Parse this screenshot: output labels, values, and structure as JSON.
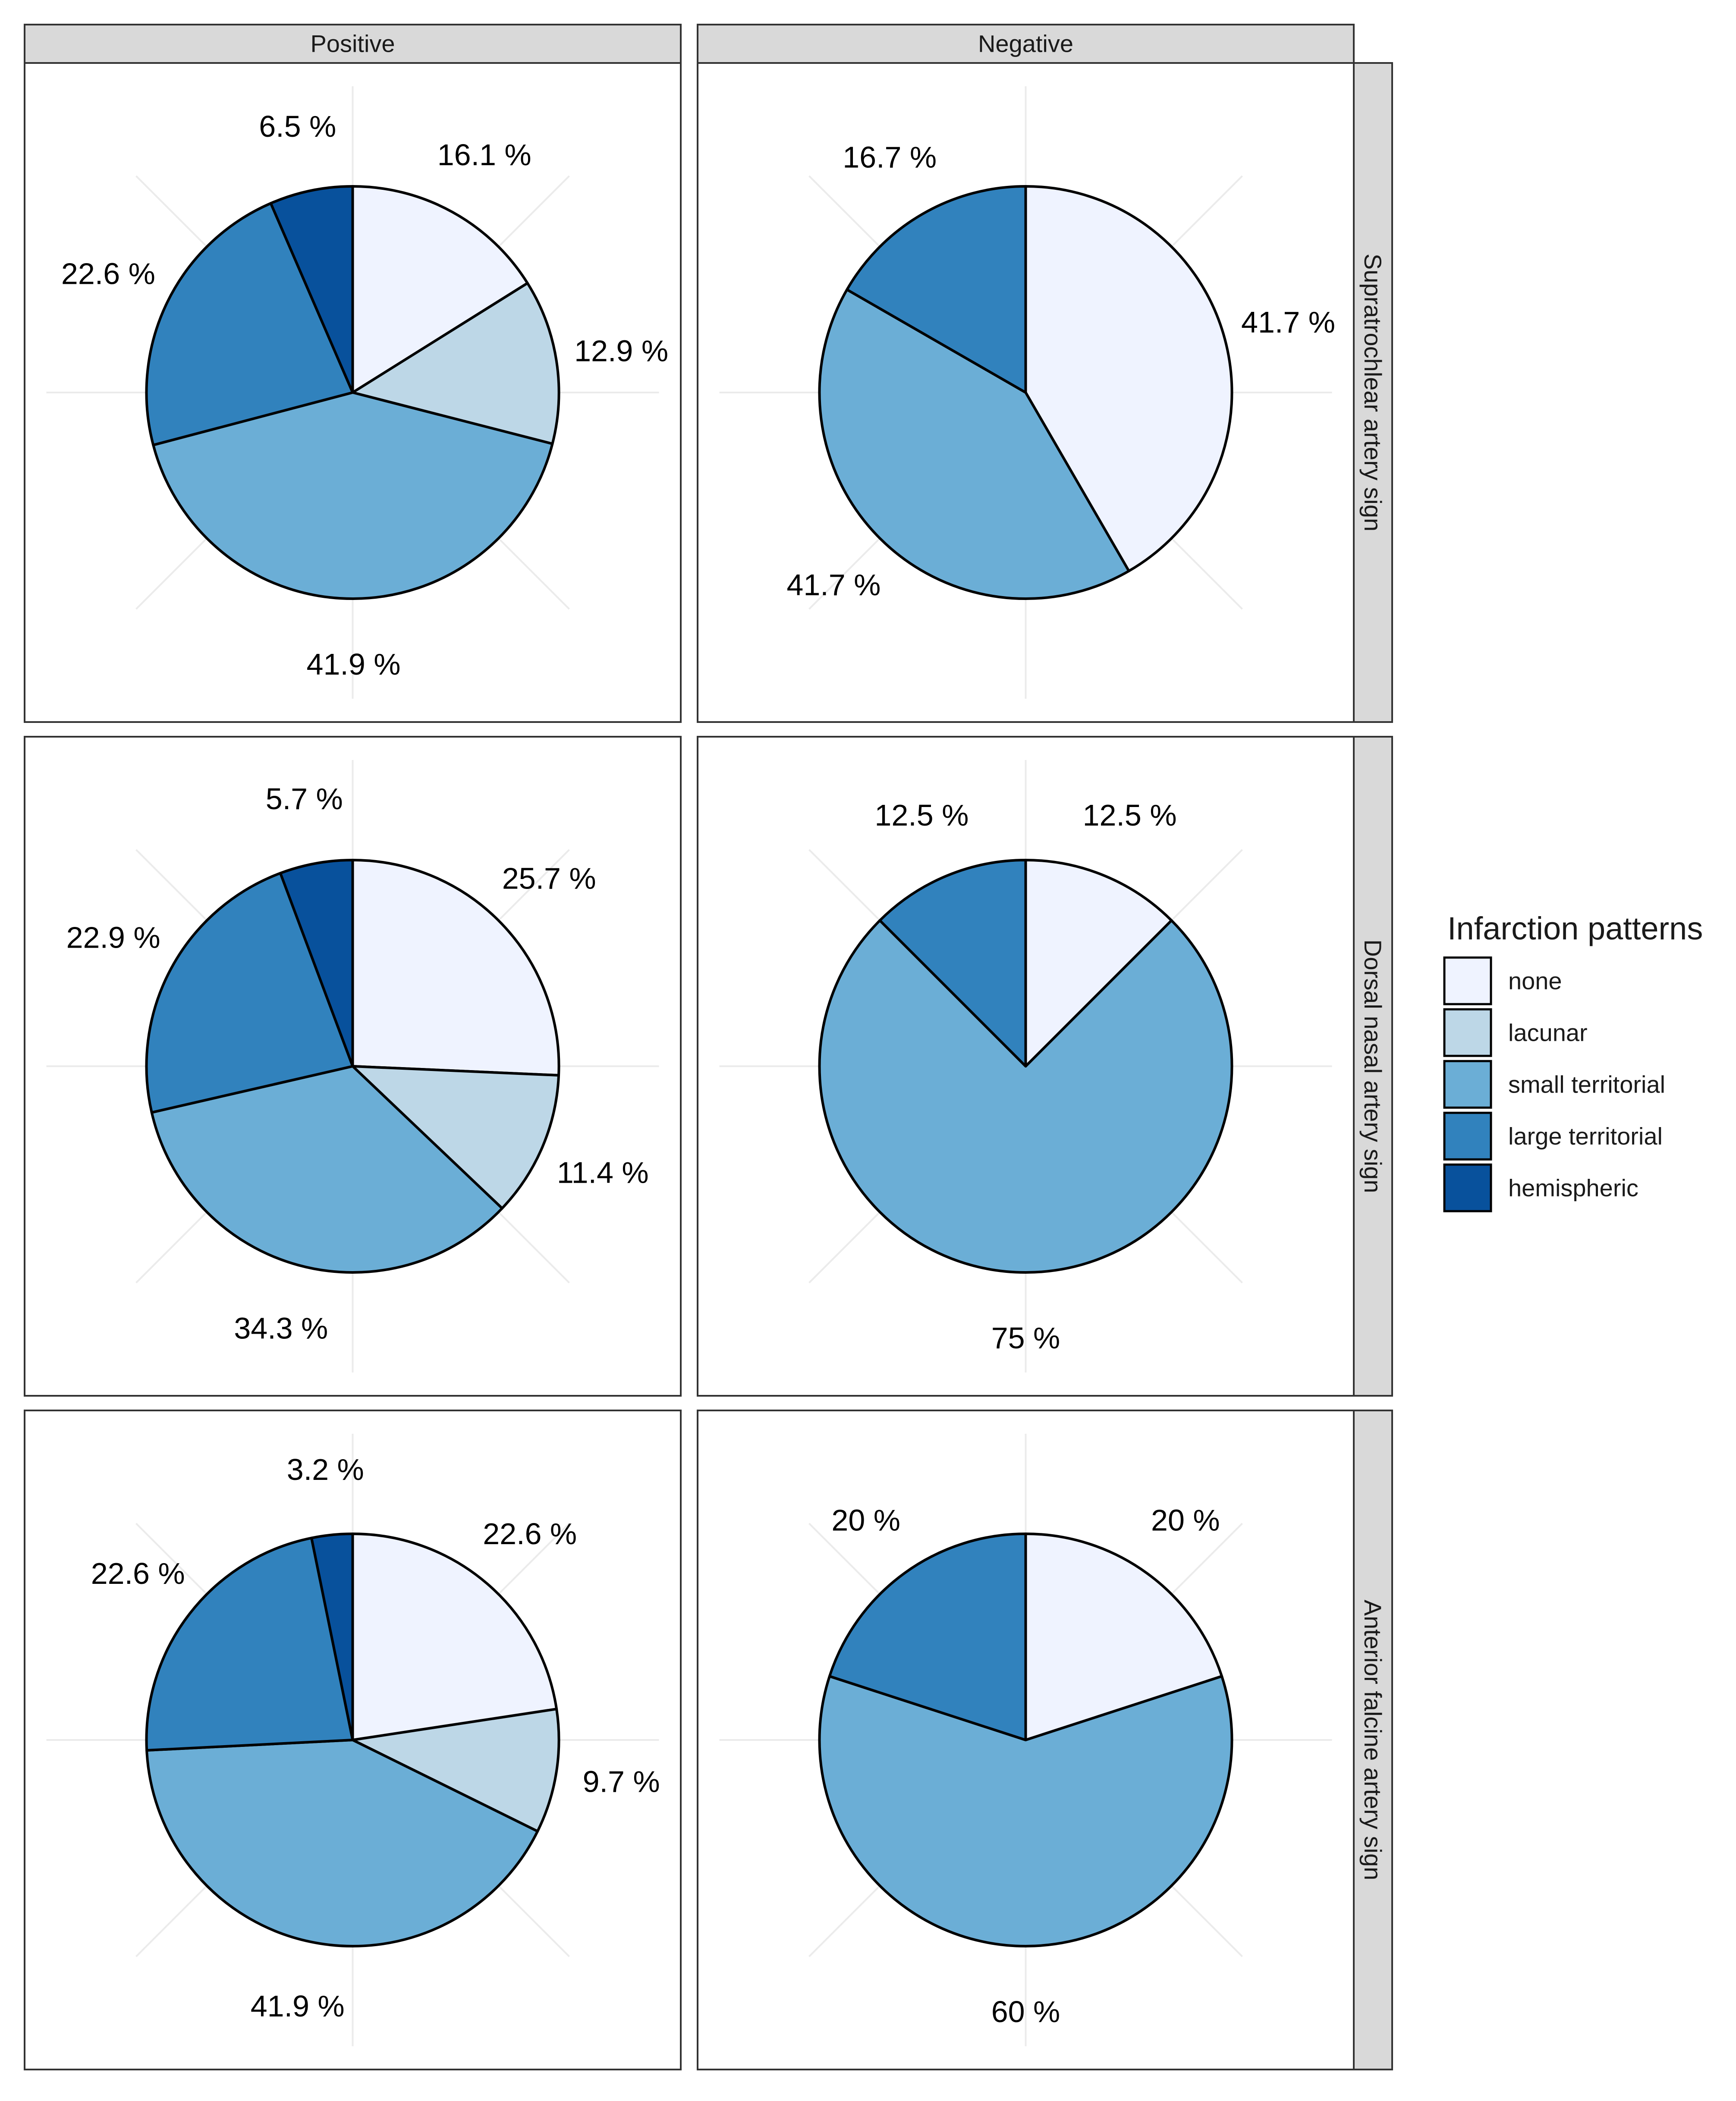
{
  "chart_data": {
    "type": "pie",
    "column_facets": [
      "Positive",
      "Negative"
    ],
    "row_facets": [
      "Supratrochlear artery sign",
      "Dorsal nasal artery sign",
      "Anterior falcine artery sign"
    ],
    "legend": {
      "title": "Infarction patterns",
      "items": [
        {
          "name": "none",
          "color": "#EFF3FF"
        },
        {
          "name": "lacunar",
          "color": "#BDD7E7"
        },
        {
          "name": "small territorial",
          "color": "#6BAED6"
        },
        {
          "name": "large territorial",
          "color": "#3182BD"
        },
        {
          "name": "hemispheric",
          "color": "#08519C"
        }
      ]
    },
    "panels": [
      {
        "row": "Supratrochlear artery sign",
        "column": "Positive",
        "slices": [
          {
            "category": "none",
            "value": 16.1,
            "label": "16.1 %"
          },
          {
            "category": "lacunar",
            "value": 12.9,
            "label": "12.9 %"
          },
          {
            "category": "small territorial",
            "value": 41.9,
            "label": "41.9 %"
          },
          {
            "category": "large territorial",
            "value": 22.6,
            "label": "22.6 %"
          },
          {
            "category": "hemispheric",
            "value": 6.5,
            "label": "6.5 %"
          }
        ]
      },
      {
        "row": "Supratrochlear artery sign",
        "column": "Negative",
        "slices": [
          {
            "category": "none",
            "value": 41.7,
            "label": "41.7 %"
          },
          {
            "category": "small territorial",
            "value": 41.7,
            "label": "41.7 %"
          },
          {
            "category": "large territorial",
            "value": 16.7,
            "label": "16.7 %"
          }
        ]
      },
      {
        "row": "Dorsal nasal artery sign",
        "column": "Positive",
        "slices": [
          {
            "category": "none",
            "value": 25.7,
            "label": "25.7 %"
          },
          {
            "category": "lacunar",
            "value": 11.4,
            "label": "11.4 %"
          },
          {
            "category": "small territorial",
            "value": 34.3,
            "label": "34.3 %"
          },
          {
            "category": "large territorial",
            "value": 22.9,
            "label": "22.9 %"
          },
          {
            "category": "hemispheric",
            "value": 5.7,
            "label": "5.7 %"
          }
        ]
      },
      {
        "row": "Dorsal nasal artery sign",
        "column": "Negative",
        "slices": [
          {
            "category": "none",
            "value": 12.5,
            "label": "12.5 %"
          },
          {
            "category": "small territorial",
            "value": 75,
            "label": "75 %"
          },
          {
            "category": "large territorial",
            "value": 12.5,
            "label": "12.5 %"
          }
        ]
      },
      {
        "row": "Anterior falcine artery sign",
        "column": "Positive",
        "slices": [
          {
            "category": "none",
            "value": 22.6,
            "label": "22.6 %"
          },
          {
            "category": "lacunar",
            "value": 9.7,
            "label": "9.7 %"
          },
          {
            "category": "small territorial",
            "value": 41.9,
            "label": "41.9 %"
          },
          {
            "category": "large territorial",
            "value": 22.6,
            "label": "22.6 %"
          },
          {
            "category": "hemispheric",
            "value": 3.2,
            "label": "3.2 %"
          }
        ]
      },
      {
        "row": "Anterior falcine artery sign",
        "column": "Negative",
        "slices": [
          {
            "category": "none",
            "value": 20,
            "label": "20 %"
          },
          {
            "category": "small territorial",
            "value": 60,
            "label": "60 %"
          },
          {
            "category": "large territorial",
            "value": 20,
            "label": "20 %"
          }
        ]
      }
    ]
  }
}
